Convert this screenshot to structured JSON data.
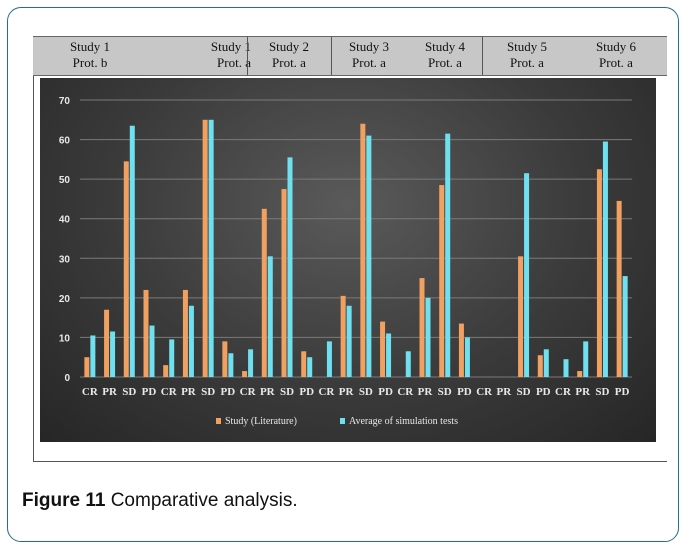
{
  "header": {
    "studies": [
      {
        "line1": "Study 1",
        "line2": "Prot. b"
      },
      {
        "line1": "Study 1",
        "line2": "Prot. a"
      },
      {
        "line1": "Study 2",
        "line2": "Prot. a"
      },
      {
        "line1": "Study 3",
        "line2": "Prot. a"
      },
      {
        "line1": "Study 4",
        "line2": "Prot. a"
      },
      {
        "line1": "Study 5",
        "line2": "Prot. a"
      },
      {
        "line1": "Study 6",
        "line2": "Prot. a"
      }
    ]
  },
  "caption": {
    "label": "Figure 11",
    "text": " Comparative analysis."
  },
  "colors": {
    "study": "#f0a060",
    "simulation": "#6fe0f0",
    "axis_text": "#e8e8e8",
    "gridline": "#7a7a7a"
  },
  "chart_data": {
    "type": "bar",
    "title": "",
    "xlabel": "",
    "ylabel": "",
    "ylim": [
      0,
      70
    ],
    "yticks": [
      0,
      10,
      20,
      30,
      40,
      50,
      60,
      70
    ],
    "grid": true,
    "legend_position": "bottom",
    "categories": [
      "CR",
      "PR",
      "SD",
      "PD",
      "CR",
      "PR",
      "SD",
      "PD",
      "CR",
      "PR",
      "SD",
      "PD",
      "CR",
      "PR",
      "SD",
      "PD",
      "CR",
      "PR",
      "SD",
      "PD",
      "CR",
      "PR",
      "SD",
      "PD",
      "CR",
      "PR",
      "SD",
      "PD"
    ],
    "series": [
      {
        "name": "Study (Literature)",
        "values": [
          5,
          17,
          54.5,
          22,
          3,
          22,
          65,
          9,
          1.5,
          42.5,
          47.5,
          6.5,
          0,
          20.5,
          64,
          14,
          0,
          25,
          48.5,
          13.5,
          0,
          0,
          30.5,
          5.5,
          0,
          1.5,
          52.5,
          44.5
        ]
      },
      {
        "name": "Average of simulation tests",
        "values": [
          10.5,
          11.5,
          63.5,
          13,
          9.5,
          18,
          65,
          6,
          7,
          30.5,
          55.5,
          5,
          9,
          18,
          61,
          11,
          6.5,
          20,
          61.5,
          10,
          0,
          0,
          51.5,
          7,
          4.5,
          9,
          59.5,
          25.5
        ]
      }
    ]
  }
}
